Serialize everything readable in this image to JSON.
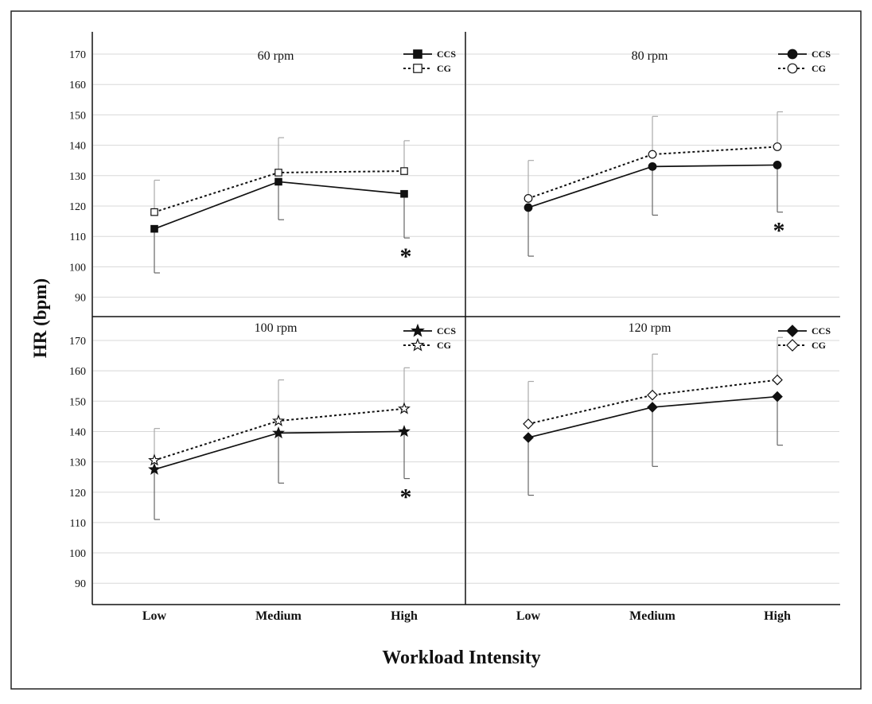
{
  "figure": {
    "ylabel": "HR (bpm)",
    "xlabel": "Workload Intensity"
  },
  "chart_data": [
    {
      "type": "line",
      "title": "60 rpm",
      "marker": "square",
      "categories": [
        "Low",
        "Medium",
        "High"
      ],
      "ylim": [
        82,
        177
      ],
      "yticks": [
        90,
        100,
        110,
        120,
        130,
        140,
        150,
        160,
        170
      ],
      "series": [
        {
          "name": "CCS",
          "values": [
            112.5,
            128,
            124
          ],
          "error": [
            14.5,
            12.5,
            14.5
          ],
          "error_dir": "down",
          "style": "solid",
          "filled": true
        },
        {
          "name": "CG",
          "values": [
            118,
            131,
            131.5
          ],
          "error": [
            10.5,
            11.5,
            10
          ],
          "error_dir": "up",
          "style": "dotted",
          "filled": false
        }
      ],
      "annotations": [
        {
          "text": "*",
          "category": "High"
        }
      ]
    },
    {
      "type": "line",
      "title": "80 rpm",
      "marker": "circle",
      "categories": [
        "Low",
        "Medium",
        "High"
      ],
      "ylim": [
        82,
        177
      ],
      "yticks": [
        90,
        100,
        110,
        120,
        130,
        140,
        150,
        160,
        170
      ],
      "series": [
        {
          "name": "CCS",
          "values": [
            119.5,
            133,
            133.5
          ],
          "error": [
            16,
            16,
            15.5
          ],
          "error_dir": "down",
          "style": "solid",
          "filled": true
        },
        {
          "name": "CG",
          "values": [
            122.5,
            137,
            139.5
          ],
          "error": [
            12.5,
            12.5,
            11.5
          ],
          "error_dir": "up",
          "style": "dotted",
          "filled": false
        }
      ],
      "annotations": [
        {
          "text": "*",
          "category": "High"
        }
      ]
    },
    {
      "type": "line",
      "title": "100 rpm",
      "marker": "star",
      "categories": [
        "Low",
        "Medium",
        "High"
      ],
      "ylim": [
        82,
        177
      ],
      "yticks": [
        90,
        100,
        110,
        120,
        130,
        140,
        150,
        160,
        170
      ],
      "series": [
        {
          "name": "CCS",
          "values": [
            127.5,
            139.5,
            140
          ],
          "error": [
            16.5,
            16.5,
            15.5
          ],
          "error_dir": "down",
          "style": "solid",
          "filled": true
        },
        {
          "name": "CG",
          "values": [
            130.5,
            143.5,
            147.5
          ],
          "error": [
            10.5,
            13.5,
            13.5
          ],
          "error_dir": "up",
          "style": "dotted",
          "filled": false
        }
      ],
      "annotations": [
        {
          "text": "*",
          "category": "High"
        }
      ]
    },
    {
      "type": "line",
      "title": "120 rpm",
      "marker": "diamond",
      "categories": [
        "Low",
        "Medium",
        "High"
      ],
      "ylim": [
        82,
        177
      ],
      "yticks": [
        90,
        100,
        110,
        120,
        130,
        140,
        150,
        160,
        170
      ],
      "series": [
        {
          "name": "CCS",
          "values": [
            138,
            148,
            151.5
          ],
          "error": [
            19,
            19.5,
            16
          ],
          "error_dir": "down",
          "style": "solid",
          "filled": true
        },
        {
          "name": "CG",
          "values": [
            142.5,
            152,
            157
          ],
          "error": [
            14,
            13.5,
            14
          ],
          "error_dir": "up",
          "style": "dotted",
          "filled": false
        }
      ],
      "annotations": []
    }
  ]
}
